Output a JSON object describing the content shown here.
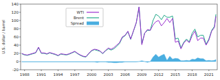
{
  "chart_data": {
    "type": "line",
    "y_label": "U.S. dollar / barrel",
    "x": [
      1987.5,
      1988,
      1988.5,
      1989,
      1989.5,
      1990,
      1990.5,
      1991,
      1991.5,
      1992,
      1992.5,
      1993,
      1993.5,
      1994,
      1994.5,
      1995,
      1995.5,
      1996,
      1996.5,
      1997,
      1997.5,
      1998,
      1998.5,
      1999,
      1999.5,
      2000,
      2000.5,
      2001,
      2001.5,
      2002,
      2002.5,
      2003,
      2003.5,
      2004,
      2004.5,
      2005,
      2005.5,
      2006,
      2006.5,
      2007,
      2007.5,
      2008,
      2008.5,
      2009,
      2009.5,
      2010,
      2010.5,
      2011,
      2011.5,
      2012,
      2012.5,
      2013,
      2013.5,
      2014,
      2014.5,
      2015,
      2015.5,
      2016,
      2016.5,
      2017,
      2017.5,
      2018,
      2018.5,
      2019,
      2019.5,
      2020,
      2020.5,
      2021,
      2021.5,
      2022,
      2022.25
    ],
    "series": [
      {
        "name": "WTI",
        "color": "#9b30d0",
        "type": "line",
        "values": [
          20,
          17,
          16,
          18,
          20,
          22,
          35,
          21,
          21,
          19,
          22,
          20,
          18,
          15,
          19,
          18,
          17,
          19,
          22,
          25,
          20,
          16,
          13,
          12,
          20,
          27,
          30,
          29,
          26,
          20,
          27,
          33,
          30,
          34,
          40,
          46,
          60,
          64,
          74,
          55,
          75,
          95,
          133,
          41,
          69,
          78,
          76,
          89,
          97,
          100,
          87,
          95,
          105,
          95,
          105,
          47,
          50,
          31,
          45,
          52,
          46,
          63,
          74,
          51,
          57,
          57,
          40,
          52,
          74,
          83,
          110
        ]
      },
      {
        "name": "Brent",
        "color": "#22a88a",
        "type": "line",
        "values": [
          19,
          16,
          15,
          17,
          19,
          21,
          34,
          20,
          20,
          18,
          21,
          19,
          17,
          14,
          18,
          17,
          16,
          18,
          21,
          24,
          19,
          15,
          12,
          11,
          19,
          26,
          29,
          27,
          25,
          19,
          26,
          31,
          28,
          31,
          37,
          44,
          58,
          63,
          73,
          54,
          74,
          94,
          133,
          43,
          69,
          76,
          76,
          100,
          115,
          111,
          102,
          113,
          108,
          108,
          111,
          55,
          57,
          33,
          47,
          55,
          48,
          69,
          79,
          60,
          64,
          64,
          42,
          55,
          76,
          86,
          115
        ]
      },
      {
        "name": "Spread",
        "color": "#4aaee0",
        "type": "area",
        "values": [
          -1,
          -1,
          -1,
          -1,
          -1,
          -1,
          -1,
          -1,
          -1,
          -1,
          -1,
          -1,
          -1,
          -1,
          -1,
          -1,
          -1,
          -1,
          -1,
          -1,
          -1,
          -1,
          -1,
          -1,
          -1,
          -1,
          -1,
          -2,
          -1,
          -1,
          -1,
          -2,
          -2,
          -3,
          -3,
          -2,
          -2,
          -1,
          -1,
          -1,
          -1,
          -1,
          0,
          2,
          0,
          -2,
          0,
          11,
          18,
          11,
          15,
          18,
          3,
          13,
          6,
          8,
          7,
          2,
          2,
          3,
          2,
          6,
          5,
          9,
          7,
          7,
          2,
          3,
          2,
          3,
          5
        ]
      }
    ],
    "xlim": [
      1987.3,
      2022.5
    ],
    "xticks": [
      1988,
      1991,
      1994,
      1997,
      2000,
      2003,
      2006,
      2009,
      2012,
      2015,
      2018,
      2021
    ],
    "ylim": [
      -20,
      140
    ],
    "yticks": [
      -20,
      0,
      20,
      40,
      60,
      80,
      100,
      120,
      140
    ],
    "grid": false,
    "legend": "upper left"
  }
}
